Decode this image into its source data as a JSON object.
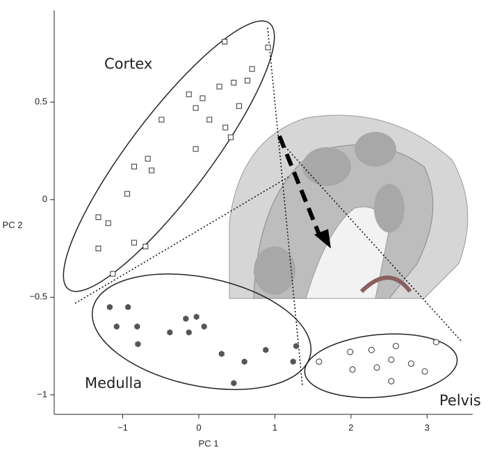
{
  "chart_data": {
    "type": "scatter",
    "x_label": "PC 1",
    "y_label": "PC 2",
    "xlim": [
      -1.9,
      3.6
    ],
    "ylim": [
      -1.1,
      0.97
    ],
    "xticks": [
      {
        "value": -1,
        "label": "−1"
      },
      0,
      1,
      2,
      3
    ],
    "yticks": [
      {
        "value": -1,
        "label": "−1"
      },
      {
        "value": -0.5,
        "label": "−0.5"
      },
      0,
      0.5
    ],
    "series": [
      {
        "name": "Cortex",
        "color": "#333333",
        "marker": "square",
        "x": [
          0.34,
          0.91,
          0.7,
          0.64,
          0.46,
          0.27,
          -0.13,
          0.05,
          0.53,
          -0.04,
          -0.49,
          0.14,
          0.35,
          0.42,
          -0.04,
          -0.67,
          -0.85,
          -0.62,
          -0.94,
          -1.32,
          -1.19,
          -0.85,
          -0.7,
          -1.32,
          -1.13
        ],
        "values": [
          0.81,
          0.78,
          0.67,
          0.61,
          0.6,
          0.58,
          0.54,
          0.52,
          0.48,
          0.47,
          0.41,
          0.41,
          0.37,
          0.32,
          0.26,
          0.21,
          0.17,
          0.15,
          0.03,
          -0.09,
          -0.12,
          -0.22,
          -0.24,
          -0.25,
          -0.38
        ]
      },
      {
        "name": "Medulla",
        "color": "#555555",
        "marker": "filled-hexagon",
        "x": [
          -1.17,
          -0.93,
          -1.08,
          -0.81,
          -0.8,
          -0.38,
          -0.17,
          -0.03,
          -0.13,
          0.07,
          0.3,
          0.6,
          0.88,
          1.28,
          1.24,
          0.46
        ],
        "values": [
          -0.55,
          -0.55,
          -0.65,
          -0.65,
          -0.74,
          -0.68,
          -0.61,
          -0.6,
          -0.68,
          -0.65,
          -0.79,
          -0.83,
          -0.77,
          -0.75,
          -0.83,
          -0.94
        ]
      },
      {
        "name": "Pelvis",
        "color": "#333333",
        "marker": "circle",
        "x": [
          1.58,
          1.99,
          2.27,
          2.59,
          3.12,
          2.02,
          2.34,
          2.53,
          2.79,
          2.97,
          2.53
        ],
        "values": [
          -0.83,
          -0.78,
          -0.77,
          -0.75,
          -0.73,
          -0.87,
          -0.86,
          -0.82,
          -0.84,
          -0.88,
          -0.93
        ]
      }
    ]
  }
}
